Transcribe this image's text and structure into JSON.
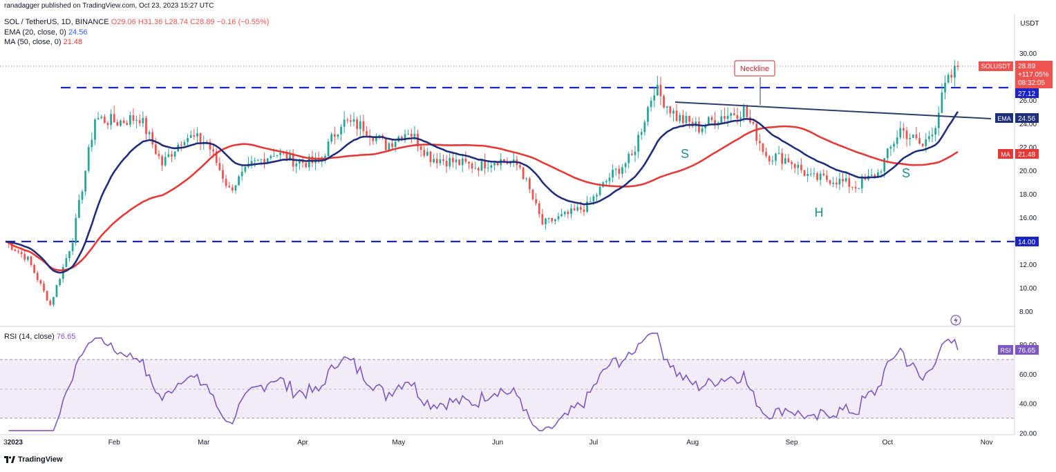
{
  "publisher": "ranadagger published on TradingView.com, Oct 23, 2023 15:27 UTC",
  "legend": {
    "symbol": "SOL / TetherUS, 1D, BINANCE",
    "ohlc": "O29.06 H31.36 L28.74 C28.89 −0.16 (−0.55%)",
    "ema_label": "EMA (20, close, 0)",
    "ema_value": "24.56",
    "ma_label": "MA (50, close, 0)",
    "ma_value": "21.48",
    "rsi_label": "RSI (14, close)",
    "rsi_value": "76.65"
  },
  "axis": {
    "currency": "USDT",
    "y_ticks": [
      "30.00",
      "26.00",
      "24.00",
      "22.00",
      "20.00",
      "18.00",
      "16.00",
      "12.00",
      "10.00",
      "8.00"
    ],
    "rsi_ticks": [
      "80.00",
      "60.00",
      "40.00",
      "20.00"
    ],
    "x_ticks": [
      "3",
      "2023",
      "Feb",
      "Mar",
      "Apr",
      "May",
      "Jun",
      "Jul",
      "Aug",
      "Sep",
      "Oct",
      "Nov"
    ]
  },
  "price_tags": {
    "sym_name": "SOLUSDT",
    "sym_price": "28.89",
    "sym_change": "+117.05%",
    "sym_timer": "08:32:05",
    "level_high": "27.12",
    "ema_name": "EMA",
    "ema_val": "24.56",
    "ma_name": "MA",
    "ma_val": "21.48",
    "level_low": "14.00",
    "rsi_name": "RSI",
    "rsi_val": "76.65"
  },
  "annotations": {
    "neckline": "Neckline",
    "left_shoulder": "S",
    "head": "H",
    "right_shoulder": "S"
  },
  "branding": "TradingView",
  "colors": {
    "up": "#26a69a",
    "down": "#ef5350",
    "ema": "#1f2e7a",
    "ma": "#e53935",
    "level": "#1a23c8",
    "rsi": "#7e57c2",
    "annotation": "#1a8f8a"
  },
  "chart_data": {
    "type": "line",
    "title": "SOL / TetherUS, 1D, BINANCE",
    "x_range": [
      "2022-12-29",
      "2023-10-23"
    ],
    "ylim": [
      7.5,
      32.5
    ],
    "levels": [
      27.12,
      14.0
    ],
    "series": [
      {
        "name": "SOL / TetherUS",
        "close_weekly": [
          [
            "2022-12-29",
            14.0
          ],
          [
            "2023-01-05",
            12.5
          ],
          [
            "2023-01-12",
            8.6
          ],
          [
            "2023-01-19",
            14.2
          ],
          [
            "2023-01-26",
            24.5
          ],
          [
            "2023-02-02",
            24.2
          ],
          [
            "2023-02-09",
            24.6
          ],
          [
            "2023-02-16",
            20.6
          ],
          [
            "2023-02-23",
            23.0
          ],
          [
            "2023-03-02",
            22.5
          ],
          [
            "2023-03-09",
            18.4
          ],
          [
            "2023-03-16",
            20.5
          ],
          [
            "2023-03-23",
            21.6
          ],
          [
            "2023-03-30",
            20.8
          ],
          [
            "2023-04-06",
            20.7
          ],
          [
            "2023-04-13",
            24.2
          ],
          [
            "2023-04-20",
            23.8
          ],
          [
            "2023-04-27",
            22.2
          ],
          [
            "2023-05-04",
            23.5
          ],
          [
            "2023-05-11",
            21.2
          ],
          [
            "2023-05-18",
            20.8
          ],
          [
            "2023-05-25",
            20.4
          ],
          [
            "2023-06-01",
            21.0
          ],
          [
            "2023-06-08",
            20.4
          ],
          [
            "2023-06-15",
            15.5
          ],
          [
            "2023-06-22",
            16.2
          ],
          [
            "2023-06-29",
            17.0
          ],
          [
            "2023-07-06",
            19.5
          ],
          [
            "2023-07-13",
            21.2
          ],
          [
            "2023-07-20",
            27.1
          ],
          [
            "2023-07-27",
            24.6
          ],
          [
            "2023-08-03",
            23.7
          ],
          [
            "2023-08-10",
            24.7
          ],
          [
            "2023-08-17",
            25.2
          ],
          [
            "2023-08-24",
            21.4
          ],
          [
            "2023-08-31",
            21.0
          ],
          [
            "2023-09-07",
            19.4
          ],
          [
            "2023-09-14",
            19.3
          ],
          [
            "2023-09-21",
            18.7
          ],
          [
            "2023-09-28",
            19.8
          ],
          [
            "2023-10-05",
            23.6
          ],
          [
            "2023-10-12",
            22.1
          ],
          [
            "2023-10-16",
            24.1
          ],
          [
            "2023-10-19",
            27.2
          ],
          [
            "2023-10-23",
            28.89
          ]
        ]
      },
      {
        "name": "EMA (20, close, 0)",
        "last": 24.56
      },
      {
        "name": "MA (50, close, 0)",
        "last": 21.48
      }
    ],
    "rsi": {
      "name": "RSI (14, close)",
      "last": 76.65,
      "ylim": [
        20,
        90
      ],
      "bands": [
        30,
        70
      ]
    }
  }
}
